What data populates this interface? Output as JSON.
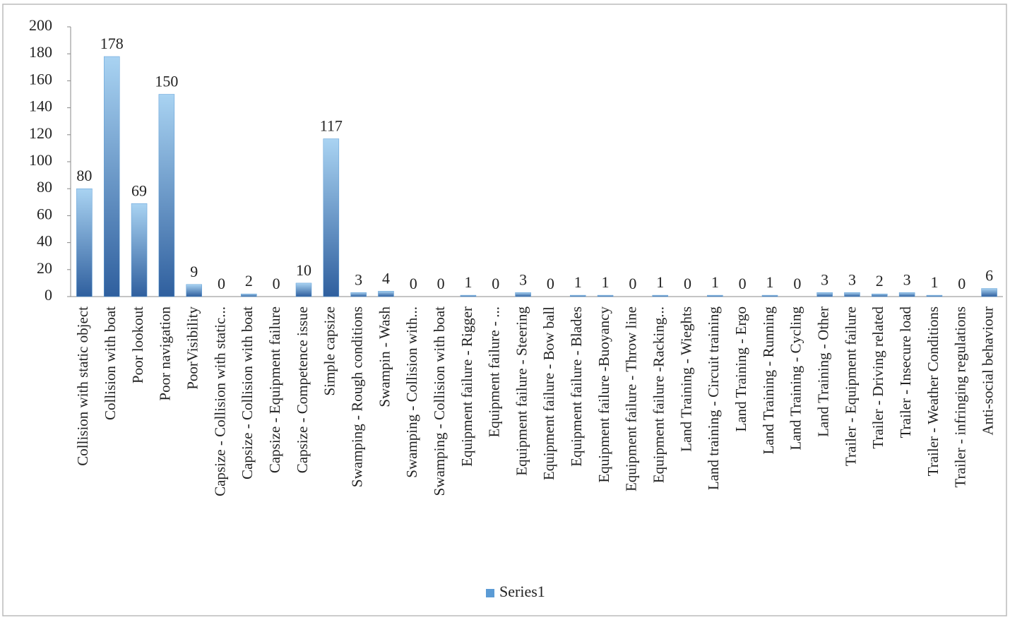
{
  "chart_data": {
    "type": "bar",
    "categories": [
      "Collision with static object",
      "Collision with boat",
      "Poor lookout",
      "Poor navigation",
      "PoorVisibility",
      "Capsize - Collision with static...",
      "Capsize - Collision with boat",
      "Capsize - Equipment failure",
      "Capsize - Competence issue",
      "Simple capsize",
      "Swamping - Rough conditions",
      "Swampin - Wash",
      "Swamping - Collision with...",
      "Swamping - Collision with boat",
      "Equipment failure - Rigger",
      "Equipment failure - ...",
      "Equipment failure - Steering",
      "Equipment failure - Bow ball",
      "Equipment failure - Blades",
      "Equipment failure -Buoyancy",
      "Equipment failure - Throw line",
      "Equipment failure -Racking...",
      "Land Training - Wieghts",
      "Land training - Circuit training",
      "Land Training - Ergo",
      "Land Training - Running",
      "Land Training - Cycling",
      "Land Training - Other",
      "Trailer - Equipment failure",
      "Trailer - Driving related",
      "Trailer - Insecure load",
      "Trailer - Weather Conditions",
      "Trailer - infringing regulations",
      "Anti-social behaviour"
    ],
    "series": [
      {
        "name": "Series1",
        "color": "#5b9bd5",
        "values": [
          80,
          178,
          69,
          150,
          9,
          0,
          2,
          0,
          10,
          117,
          3,
          4,
          0,
          0,
          1,
          0,
          3,
          0,
          1,
          1,
          0,
          1,
          0,
          1,
          0,
          1,
          0,
          3,
          3,
          2,
          3,
          1,
          0,
          6
        ]
      }
    ],
    "ylim": [
      0,
      200
    ],
    "yticks": [
      0,
      20,
      40,
      60,
      80,
      100,
      120,
      140,
      160,
      180,
      200
    ],
    "legend": "bottom"
  }
}
